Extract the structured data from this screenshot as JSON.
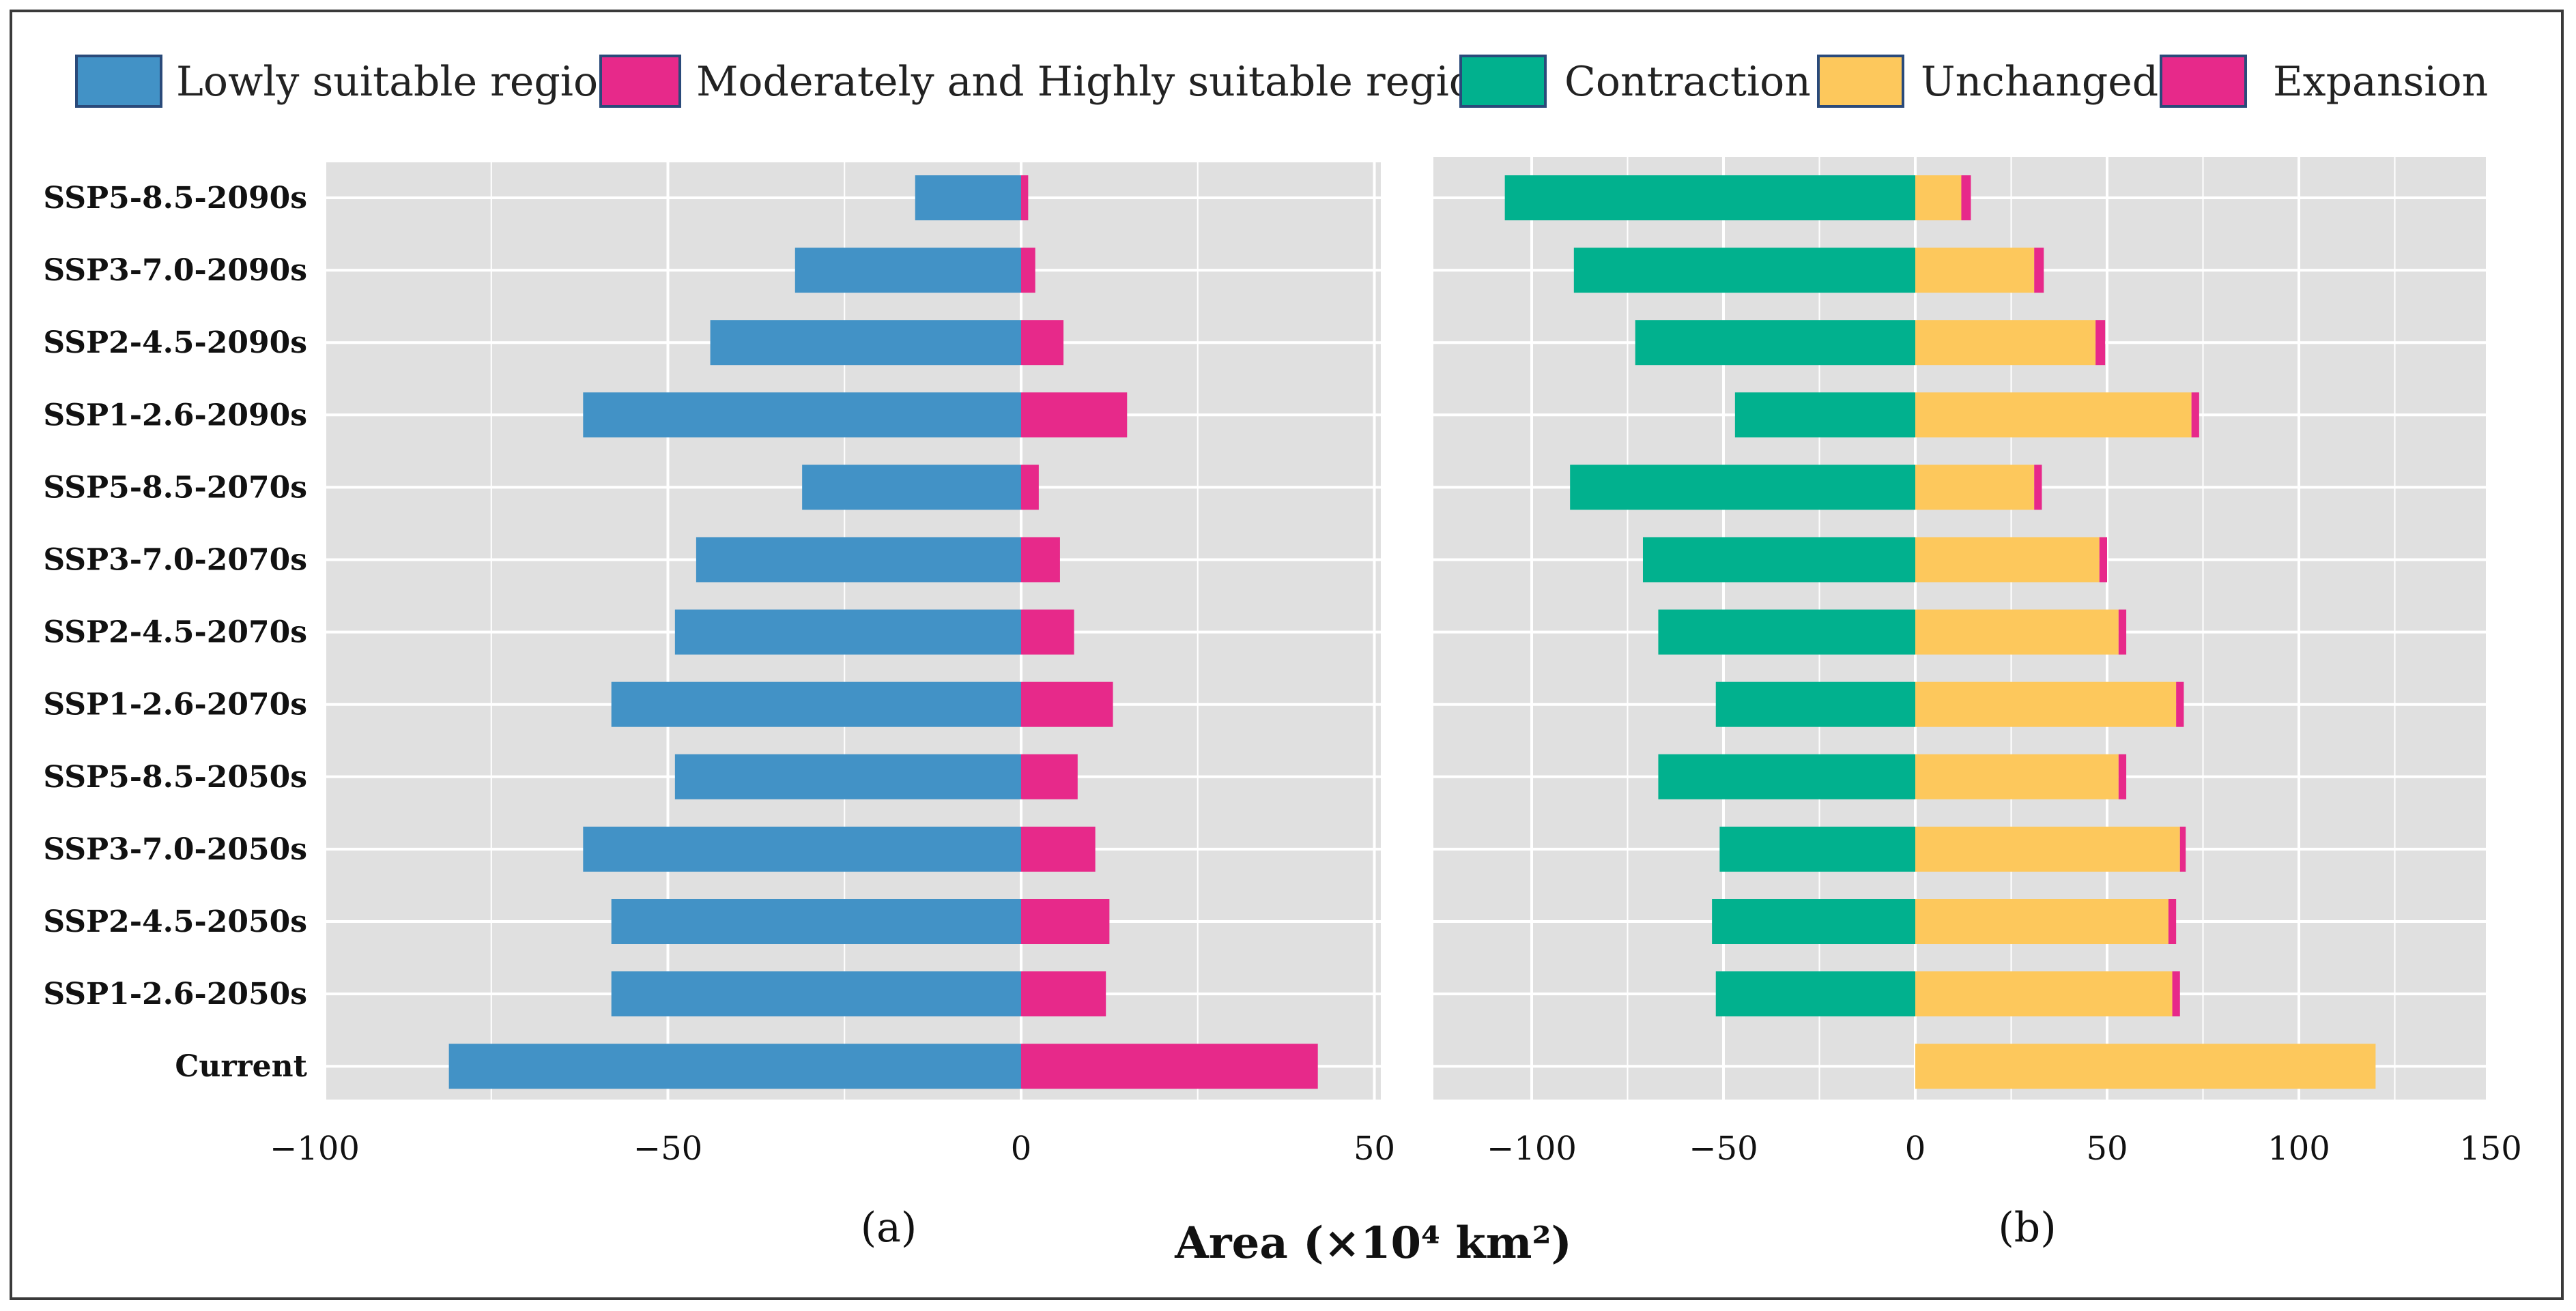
{
  "chart_data": [
    {
      "type": "bar",
      "orientation": "horizontal",
      "stacked": false,
      "panel_label": "(a)",
      "categories": [
        "SSP5-8.5-2090s",
        "SSP3-7.0-2090s",
        "SSP2-4.5-2090s",
        "SSP1-2.6-2090s",
        "SSP5-8.5-2070s",
        "SSP3-7.0-2070s",
        "SSP2-4.5-2070s",
        "SSP1-2.6-2070s",
        "SSP5-8.5-2050s",
        "SSP3-7.0-2050s",
        "SSP2-4.5-2050s",
        "SSP1-2.6-2050s",
        "Current"
      ],
      "series": [
        {
          "name": "Lowly suitable region",
          "color": "#4292c6",
          "values": [
            -15,
            -32,
            -44,
            -62,
            -31,
            -46,
            -49,
            -58,
            -49,
            -62,
            -58,
            -58,
            -81
          ]
        },
        {
          "name": "Moderately and Highly suitable region",
          "color": "#e7298a",
          "values": [
            1,
            2,
            6,
            15,
            2.5,
            5.5,
            7.5,
            13,
            8,
            10.5,
            12.5,
            12,
            42
          ]
        }
      ],
      "xlim": [
        -100,
        50
      ],
      "xticks": [
        "−100",
        "−50",
        "0",
        "50"
      ],
      "xtick_values": [
        -100,
        -50,
        0,
        50
      ],
      "grid": true
    },
    {
      "type": "bar",
      "orientation": "horizontal",
      "stacked": true,
      "panel_label": "(b)",
      "categories": [
        "SSP5-8.5-2090s",
        "SSP3-7.0-2090s",
        "SSP2-4.5-2090s",
        "SSP1-2.6-2090s",
        "SSP5-8.5-2070s",
        "SSP3-7.0-2070s",
        "SSP2-4.5-2070s",
        "SSP1-2.6-2070s",
        "SSP5-8.5-2050s",
        "SSP3-7.0-2050s",
        "SSP2-4.5-2050s",
        "SSP1-2.6-2050s",
        "Current"
      ],
      "series": [
        {
          "name": "Contraction",
          "color": "#01b18e",
          "values": [
            -107,
            -89,
            -73,
            -47,
            -90,
            -71,
            -67,
            -52,
            -67,
            -51,
            -53,
            -52,
            0
          ]
        },
        {
          "name": "Unchanged",
          "color": "#fdc85c",
          "values": [
            12,
            31,
            47,
            72,
            31,
            48,
            53,
            68,
            53,
            69,
            66,
            67,
            120
          ]
        },
        {
          "name": "Expansion",
          "color": "#e7298a",
          "values": [
            2.5,
            2.5,
            2.5,
            2,
            2,
            2,
            2,
            2,
            2,
            1.5,
            2,
            2,
            0
          ]
        }
      ],
      "xlim": [
        -120,
        150
      ],
      "xticks": [
        "−100",
        "−50",
        "0",
        "50",
        "100",
        "150"
      ],
      "xtick_values": [
        -100,
        -50,
        0,
        50,
        100,
        150
      ],
      "grid": true
    }
  ],
  "legend_left": [
    {
      "label": "Lowly suitable region",
      "color": "#4292c6"
    },
    {
      "label": "Moderately and Highly suitable region",
      "color": "#e7298a"
    }
  ],
  "legend_right": [
    {
      "label": "Contraction",
      "color": "#01b18e"
    },
    {
      "label": "Unchanged",
      "color": "#fdc85c"
    },
    {
      "label": "Expansion",
      "color": "#e7298a"
    }
  ],
  "shared_xlabel": "Area (×10⁴ km²)",
  "colors": {
    "panel_bg": "#e0e0e0",
    "grid": "#ffffff"
  }
}
